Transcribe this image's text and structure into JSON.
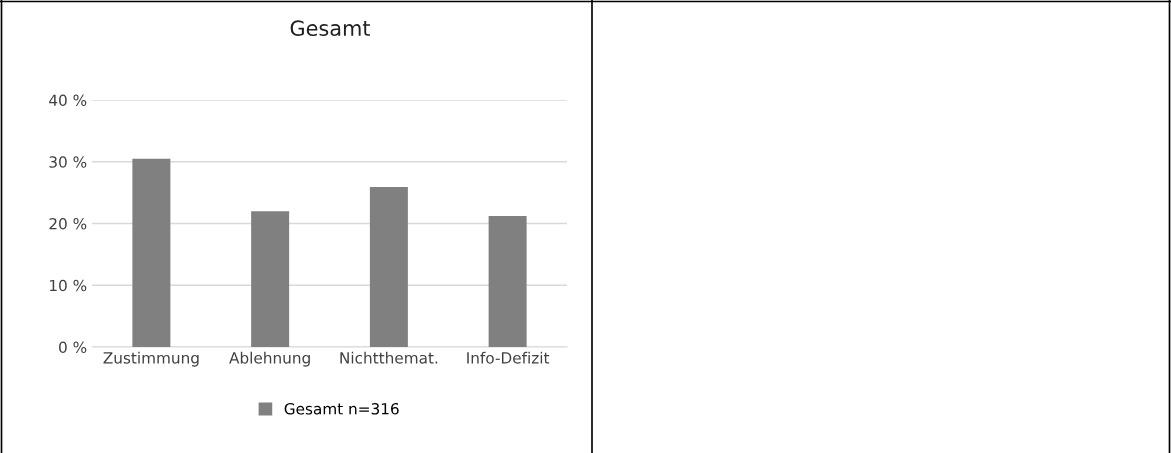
{
  "chart_data": {
    "type": "bar",
    "title": "Gesamt",
    "categories": [
      "Zustimmung",
      "Ablehnung",
      "Nichtthemat.",
      "Info-Defizit"
    ],
    "series": [
      {
        "name": "Gesamt n=316",
        "color": "#808080",
        "values": [
          30.5,
          22.0,
          25.9,
          21.2
        ]
      }
    ],
    "ylim": [
      0,
      40
    ],
    "yticks": [
      {
        "value": 0,
        "label": "0 %"
      },
      {
        "value": 10,
        "label": "10 %"
      },
      {
        "value": 20,
        "label": "20 %"
      },
      {
        "value": 30,
        "label": "30 %"
      },
      {
        "value": 40,
        "label": "40 %"
      }
    ],
    "grid": "y",
    "legend": "bottom"
  }
}
